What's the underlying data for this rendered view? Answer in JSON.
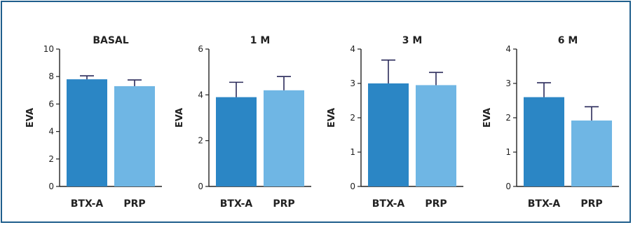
{
  "chart_data": [
    {
      "type": "bar",
      "title": "BASAL",
      "ylabel": "EVA",
      "xlabel": "",
      "ylim": [
        0,
        10
      ],
      "yticks": [
        0,
        2,
        4,
        6,
        8,
        10
      ],
      "categories": [
        "BTX-A",
        "PRP"
      ],
      "values": [
        7.8,
        7.3
      ],
      "errors": [
        0.25,
        0.45
      ],
      "grid": false
    },
    {
      "type": "bar",
      "title": "1 M",
      "ylabel": "EVA",
      "xlabel": "",
      "ylim": [
        0,
        6
      ],
      "yticks": [
        0,
        2,
        4,
        6
      ],
      "categories": [
        "BTX-A",
        "PRP"
      ],
      "values": [
        3.9,
        4.2
      ],
      "errors": [
        0.65,
        0.6
      ],
      "grid": false
    },
    {
      "type": "bar",
      "title": "3 M",
      "ylabel": "EVA",
      "xlabel": "",
      "ylim": [
        0,
        4
      ],
      "yticks": [
        0,
        1,
        2,
        3,
        4
      ],
      "categories": [
        "BTX-A",
        "PRP"
      ],
      "values": [
        3.0,
        2.95
      ],
      "errors": [
        0.68,
        0.37
      ],
      "grid": false
    },
    {
      "type": "bar",
      "title": "6 M",
      "ylabel": "EVA",
      "xlabel": "",
      "ylim": [
        0,
        4
      ],
      "yticks": [
        0,
        1,
        2,
        3,
        4
      ],
      "categories": [
        "BTX-A",
        "PRP"
      ],
      "values": [
        2.6,
        1.92
      ],
      "errors": [
        0.42,
        0.4
      ],
      "grid": false
    }
  ],
  "colors": {
    "btx": "#2b86c5",
    "prp": "#6fb6e4",
    "error_bar": "#2a2a5a",
    "axis": "#222222",
    "border": "#1f5e8c"
  }
}
